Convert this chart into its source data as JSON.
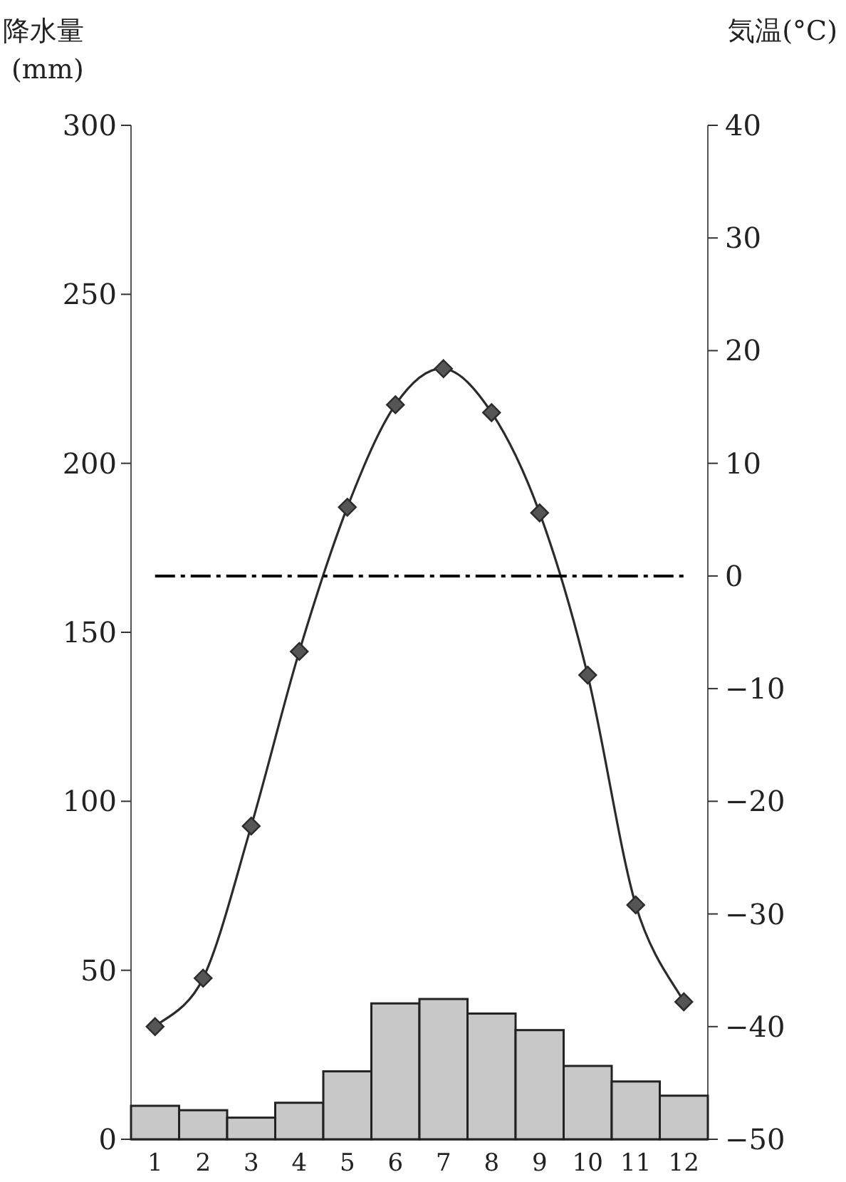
{
  "chart_data": {
    "type": "bar",
    "ylabel": "降水量 (mm)",
    "y2label": "気温(°C)",
    "categories": [
      "1",
      "2",
      "3",
      "4",
      "5",
      "6",
      "7",
      "8",
      "9",
      "10",
      "11",
      "12"
    ],
    "series": [
      {
        "color": "#c8c8c8",
        "values": [
          9.9,
          8.6,
          6.4,
          10.8,
          20.1,
          40.2,
          41.5,
          37.2,
          32.3,
          21.7,
          17.1,
          12.9
        ]
      },
      {
        "type": "line",
        "axis": "y2",
        "color": "#2b2b2b",
        "marker": "diamond",
        "values": [
          -40.0,
          -35.7,
          -22.2,
          -6.7,
          6.1,
          15.2,
          18.4,
          14.5,
          5.6,
          -8.8,
          -29.2,
          -37.8
        ]
      }
    ],
    "ylim": [
      0,
      300
    ],
    "yticks": [
      0,
      50,
      100,
      150,
      200,
      250,
      300
    ],
    "y2lim": [
      -50,
      40
    ],
    "y2ticks": [
      -50,
      -40,
      -30,
      -20,
      -10,
      0,
      10,
      20,
      30,
      40
    ],
    "ref_lines": [
      {
        "axis": "y2",
        "value": 0,
        "color": "#000000",
        "line_style": "dashdot"
      }
    ],
    "grid": false
  }
}
